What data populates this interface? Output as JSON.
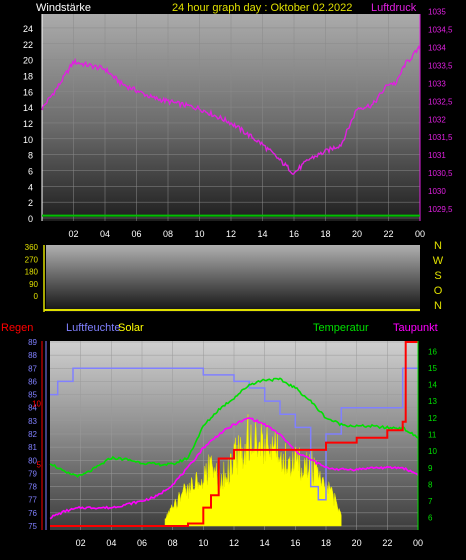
{
  "header": {
    "left_label": "Windstärke",
    "title": "24 hour graph day : Oktober 02.2022",
    "right_label": "Luftdruck"
  },
  "colors": {
    "background": "#000000",
    "wind_text": "#ffffff",
    "title": "#e0e000",
    "pressure": "#e020e0",
    "wind_axis": "#00c000",
    "regen": "#ff0000",
    "humidity": "#8080ff",
    "solar": "#ffff00",
    "temperature": "#00e000",
    "dewpoint": "#ff00ff",
    "direction_letters": "#e0e000"
  },
  "chart_data": [
    {
      "type": "line",
      "title": "24 hour graph day : Oktober 02.2022",
      "x_ticks": [
        "02",
        "04",
        "06",
        "08",
        "10",
        "12",
        "14",
        "16",
        "18",
        "20",
        "22",
        "00"
      ],
      "left_axis": {
        "label": "Windstärke",
        "ylim": [
          0,
          25
        ],
        "ticks": [
          "0",
          "2",
          "4",
          "6",
          "8",
          "10",
          "12",
          "14",
          "16",
          "18",
          "20",
          "22",
          "24"
        ]
      },
      "right_axis": {
        "label": "Luftdruck",
        "ylim": [
          1029.25,
          1035.1
        ],
        "ticks": [
          "1029,5",
          "1030",
          "1030,5",
          "1031",
          "1031,5",
          "1032",
          "1032,5",
          "1033",
          "1033,5",
          "1034",
          "1034,5",
          "1035"
        ]
      },
      "series": [
        {
          "name": "Luftdruck",
          "axis": "right",
          "x": [
            0,
            1,
            2,
            3,
            4,
            5,
            6,
            7,
            8,
            9,
            10,
            11,
            12,
            13,
            14,
            15,
            16,
            16.5,
            17,
            18,
            19,
            20,
            21,
            22,
            22.5,
            23,
            24
          ],
          "values": [
            1032.3,
            1032.9,
            1033.6,
            1033.5,
            1033.4,
            1033.0,
            1032.8,
            1032.6,
            1032.5,
            1032.4,
            1032.3,
            1032.1,
            1031.9,
            1031.6,
            1031.3,
            1030.9,
            1030.5,
            1030.7,
            1030.9,
            1031.1,
            1031.3,
            1032.3,
            1032.4,
            1033.0,
            1033.0,
            1033.5,
            1034.0
          ]
        },
        {
          "name": "Windstärke",
          "axis": "left",
          "x": [
            0,
            24
          ],
          "values": [
            0.3,
            0.3
          ]
        }
      ]
    },
    {
      "type": "line",
      "x_ticks": [
        "02",
        "04",
        "06",
        "08",
        "10",
        "12",
        "14",
        "16",
        "18",
        "20",
        "22",
        "00"
      ],
      "left_axis": {
        "ylim": [
          0,
          360
        ],
        "ticks": [
          "0",
          "90",
          "180",
          "270",
          "360"
        ]
      },
      "right_labels": [
        "N",
        "W",
        "S",
        "O",
        "N"
      ],
      "series": [
        {
          "name": "",
          "x": [
            0,
            24
          ],
          "values": [
            0,
            0
          ]
        }
      ]
    },
    {
      "type": "line",
      "x_ticks": [
        "02",
        "04",
        "06",
        "08",
        "10",
        "12",
        "14",
        "16",
        "18",
        "20",
        "22",
        "00"
      ],
      "axis_titles": {
        "regen": "Regen",
        "humidity": "Luftfeuchte",
        "solar": "Solar",
        "temperature": "Temperatur",
        "dewpoint": "Taupunkt"
      },
      "regen_axis": {
        "ylim": [
          0,
          15
        ],
        "ticks": [
          "5",
          "10"
        ]
      },
      "humidity_axis": {
        "ylim": [
          75,
          89
        ],
        "ticks": [
          "75",
          "76",
          "77",
          "78",
          "79",
          "80",
          "81",
          "82",
          "83",
          "84",
          "85",
          "86",
          "87",
          "88",
          "89"
        ]
      },
      "temperature_axis": {
        "ylim": [
          5.5,
          16.5
        ],
        "ticks": [
          "6",
          "7",
          "8",
          "9",
          "10",
          "11",
          "12",
          "13",
          "14",
          "15",
          "16"
        ]
      },
      "series": [
        {
          "name": "Luftfeuchte",
          "axis": "humidity",
          "x": [
            0,
            0.5,
            1,
            1.5,
            2,
            3,
            6,
            8,
            9,
            10,
            11,
            12,
            13,
            14,
            15,
            16,
            17,
            17.5,
            18,
            19,
            20,
            21,
            22,
            23,
            24
          ],
          "values": [
            85,
            86,
            86,
            87,
            87,
            87,
            87,
            87,
            87,
            86.5,
            86.5,
            86,
            85.5,
            84.5,
            83.5,
            82.5,
            78,
            77,
            82,
            84,
            84,
            84,
            84,
            87,
            87
          ]
        },
        {
          "name": "Temperatur",
          "axis": "temperature",
          "x": [
            0,
            1,
            2,
            3,
            4,
            5,
            6,
            7,
            8,
            9,
            10,
            11,
            12,
            13,
            14,
            15,
            16,
            17,
            18,
            19,
            20,
            21,
            22,
            23,
            24
          ],
          "values": [
            9.3,
            8.7,
            8.5,
            9.0,
            9.6,
            9.5,
            9.3,
            9.2,
            9.2,
            9.6,
            11.5,
            12.5,
            13.2,
            14.0,
            14.3,
            14.3,
            13.8,
            13.0,
            12.0,
            11.6,
            11.5,
            11.5,
            11.4,
            11.4,
            10.8
          ]
        },
        {
          "name": "Taupunkt",
          "axis": "temperature",
          "x": [
            0,
            1,
            2,
            3,
            4,
            5,
            6,
            7,
            8,
            9,
            10,
            11,
            12,
            13,
            14,
            15,
            16,
            17,
            18,
            19,
            20,
            21,
            22,
            23,
            24
          ],
          "values": [
            6.0,
            6.4,
            6.6,
            6.6,
            6.6,
            6.8,
            7.0,
            7.3,
            8.0,
            9.0,
            10.2,
            11.0,
            11.6,
            12.0,
            11.6,
            11.0,
            10.0,
            9.5,
            9.0,
            8.9,
            8.9,
            9.0,
            9.0,
            9.0,
            8.6
          ]
        },
        {
          "name": "Regen",
          "axis": "regen",
          "x": [
            0,
            7,
            8,
            9,
            10,
            10.5,
            11,
            12,
            15,
            16,
            18,
            19,
            20,
            21,
            22,
            23,
            23.2,
            24
          ],
          "values": [
            0,
            0,
            0,
            0.2,
            1.5,
            2.5,
            5.5,
            6.2,
            6.2,
            6.2,
            6.8,
            6.8,
            7.2,
            7.2,
            7.8,
            8.5,
            15,
            15
          ]
        },
        {
          "name": "Solar",
          "axis": "regen",
          "x": [
            7.5,
            8,
            8.5,
            9,
            9.5,
            10,
            10.5,
            11,
            11.5,
            12,
            12.5,
            13,
            13.5,
            14,
            14.5,
            15,
            15.5,
            16,
            16.5,
            17,
            17.5,
            18,
            18.5,
            19
          ],
          "values": [
            0.8,
            2.0,
            3.0,
            4.0,
            4.5,
            5.5,
            6.0,
            5.0,
            5.5,
            7.0,
            8.0,
            9.5,
            8.5,
            9.0,
            8.0,
            7.5,
            6.5,
            7.0,
            6.0,
            6.5,
            5.0,
            4.0,
            3.0,
            1.0
          ]
        }
      ]
    }
  ]
}
